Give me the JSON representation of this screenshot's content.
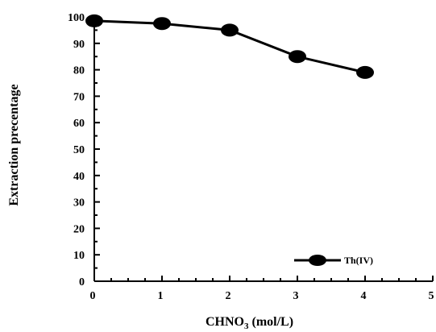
{
  "chart_data": {
    "type": "line",
    "xlabel": "CHNO",
    "xlabel_sub": "3",
    "xlabel_unit": " (mol/L)",
    "ylabel": "Extraction precentage",
    "xlim": [
      0,
      5
    ],
    "ylim": [
      0,
      100
    ],
    "x_ticks": [
      "0",
      "1",
      "2",
      "3",
      "4",
      "5"
    ],
    "y_ticks": [
      "0",
      "10",
      "20",
      "30",
      "40",
      "50",
      "60",
      "70",
      "80",
      "90",
      "100"
    ],
    "grid": false,
    "legend_position": "bottom-right",
    "series": [
      {
        "name": "Th(IV)",
        "color": "#000000",
        "marker": "filled-ellipse",
        "x": [
          0,
          1,
          2,
          3,
          4
        ],
        "y": [
          98.5,
          97.5,
          95,
          85,
          79
        ]
      }
    ]
  }
}
